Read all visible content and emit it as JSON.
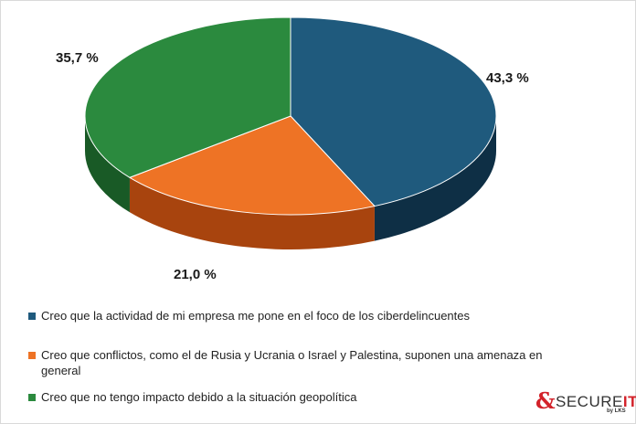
{
  "chart_data": {
    "type": "pie",
    "style": "3d",
    "slices": [
      {
        "label": "Creo que la actividad de mi empresa me pone en el foco de los ciberdelincuentes",
        "value": 43.3,
        "display": "43,3 %",
        "color": "#1f5a7d",
        "side_color": "#0e2f45"
      },
      {
        "label": "Creo que conflictos, como el de Rusia y Ucrania o Israel y Palestina, suponen una amenaza en general",
        "value": 21.0,
        "display": "21,0 %",
        "color": "#ee7325",
        "side_color": "#a8440e"
      },
      {
        "label": "Creo que no tengo impacto debido a la situación geopolítica",
        "value": 35.7,
        "display": "35,7 %",
        "color": "#2b8a3e",
        "side_color": "#195a26"
      }
    ],
    "legend_position": "bottom-left"
  },
  "legend": [
    {
      "text": "Creo que la actividad de mi empresa me pone en el foco de los ciberdelincuentes",
      "color": "#1f5a7d"
    },
    {
      "text": "Creo que conflictos, como el de Rusia y Ucrania o Israel y Palestina, suponen una amenaza en general",
      "color": "#ee7325"
    },
    {
      "text": "Creo que no tengo impacto debido a la situación geopolítica",
      "color": "#2b8a3e"
    }
  ],
  "brand": {
    "mark": "&",
    "name_main": "SECURE",
    "name_accent": "IT",
    "sub": "by LKS"
  }
}
